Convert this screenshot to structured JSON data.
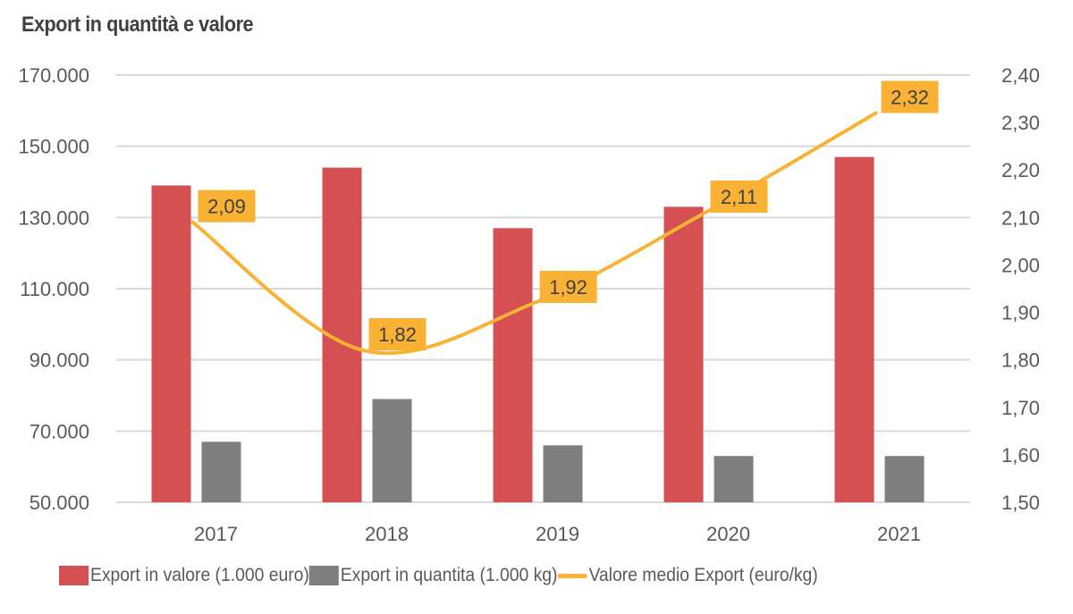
{
  "chart_data": {
    "type": "bar",
    "title": "Export in quantità e valore",
    "categories": [
      "2017",
      "2018",
      "2019",
      "2020",
      "2021"
    ],
    "series": [
      {
        "name": "Export in valore (1.000 euro)",
        "kind": "bar",
        "axis": "left",
        "color": "#D45052",
        "values": [
          139000,
          144000,
          127000,
          133000,
          147000
        ]
      },
      {
        "name": "Export in quantita (1.000 kg)",
        "kind": "bar",
        "axis": "left",
        "color": "#7F7F7F",
        "values": [
          67000,
          79000,
          66000,
          63000,
          63000
        ]
      },
      {
        "name": "Valore medio Export (euro/kg)",
        "kind": "line",
        "axis": "right",
        "color": "#F9B233",
        "values": [
          2.09,
          1.82,
          1.92,
          2.11,
          2.32
        ],
        "data_labels": [
          "2,09",
          "1,82",
          "1,92",
          "2,11",
          "2,32"
        ]
      }
    ],
    "y_left": {
      "min": 50000,
      "max": 170000,
      "step": 20000,
      "tick_labels": [
        "50.000",
        "70.000",
        "90.000",
        "110.000",
        "130.000",
        "150.000",
        "170.000"
      ]
    },
    "y_right": {
      "min": 1.5,
      "max": 2.4,
      "step": 0.1,
      "tick_labels": [
        "1,50",
        "1,60",
        "1,70",
        "1,80",
        "1,90",
        "2,00",
        "2,10",
        "2,20",
        "2,30",
        "2,40"
      ]
    },
    "xlabel": "",
    "ylabel": "",
    "grid": true,
    "legend_position": "bottom"
  }
}
